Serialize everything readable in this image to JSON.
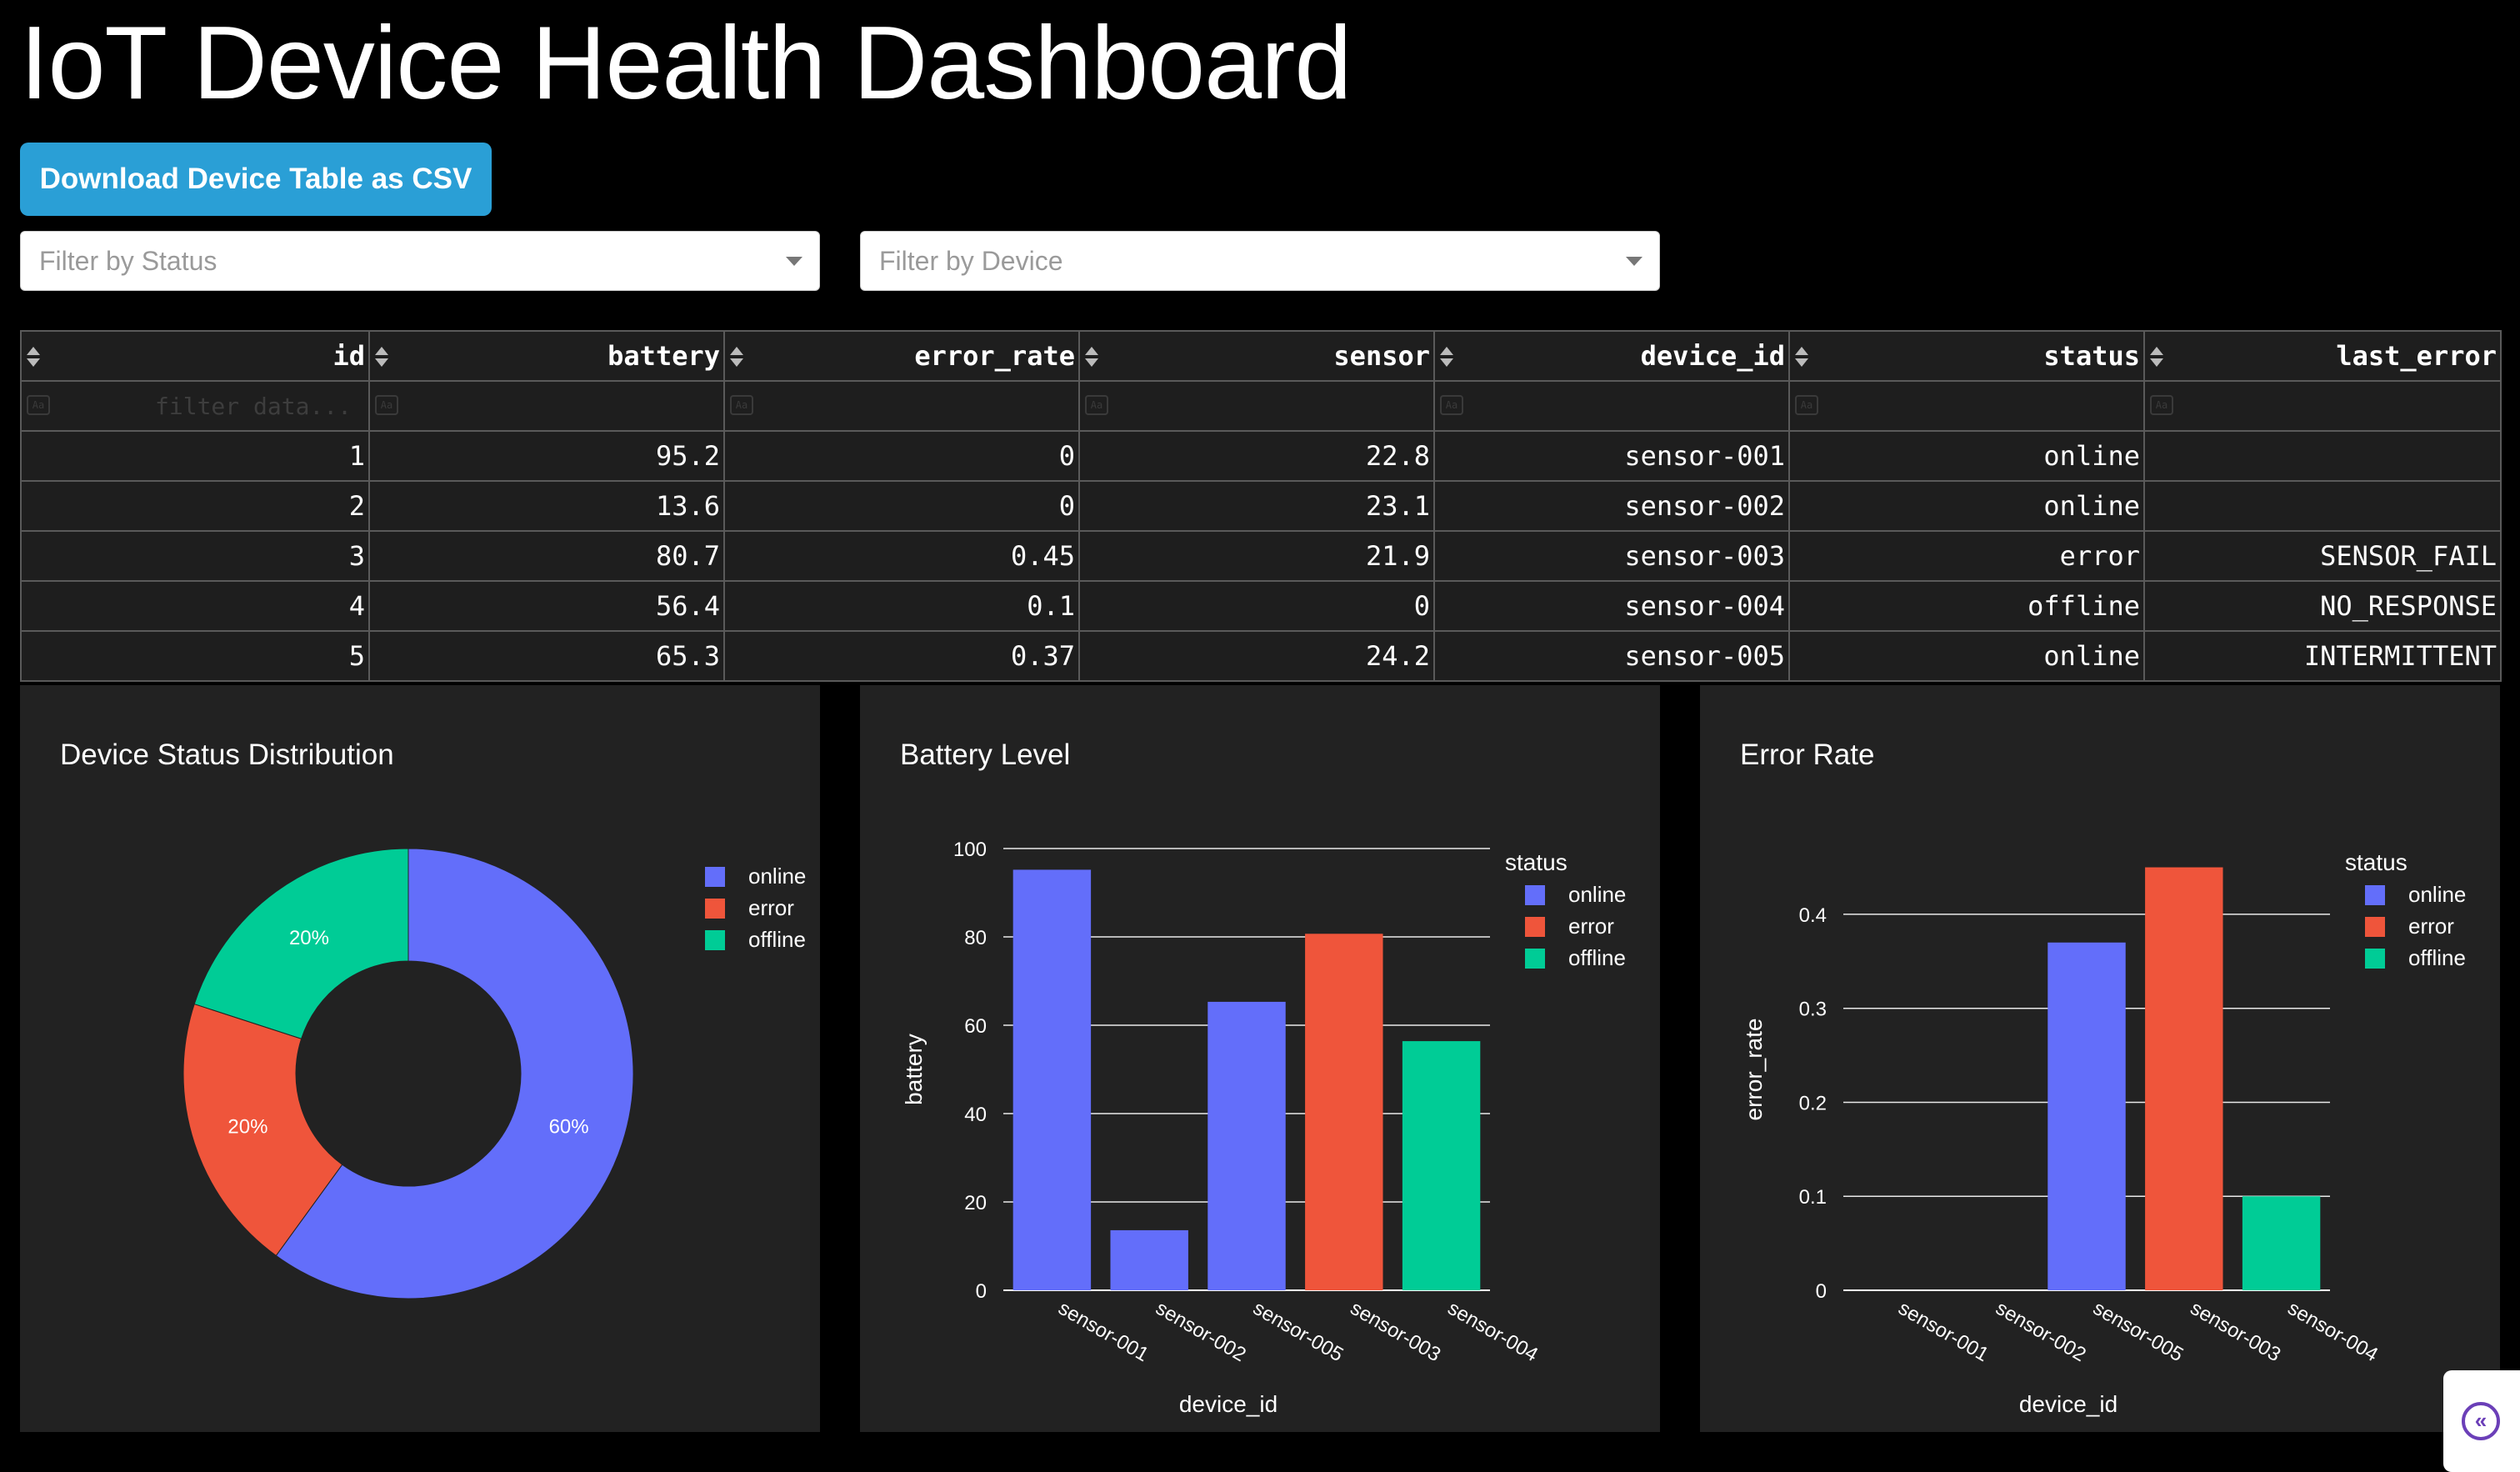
{
  "header": {
    "title": "IoT Device Health Dashboard"
  },
  "toolbar": {
    "download_label": "Download Device Table as CSV"
  },
  "filters": {
    "status_placeholder": "Filter by Status",
    "device_placeholder": "Filter by Device"
  },
  "table": {
    "columns": [
      "id",
      "battery",
      "error_rate",
      "sensor",
      "device_id",
      "status",
      "last_error"
    ],
    "filter_placeholder": "filter data...",
    "case_icon_label": "Aa",
    "rows": [
      [
        "1",
        "95.2",
        "0",
        "22.8",
        "sensor-001",
        "online",
        ""
      ],
      [
        "2",
        "13.6",
        "0",
        "23.1",
        "sensor-002",
        "online",
        ""
      ],
      [
        "3",
        "80.7",
        "0.45",
        "21.9",
        "sensor-003",
        "error",
        "SENSOR_FAIL"
      ],
      [
        "4",
        "56.4",
        "0.1",
        "0",
        "sensor-004",
        "offline",
        "NO_RESPONSE"
      ],
      [
        "5",
        "65.3",
        "0.37",
        "24.2",
        "sensor-005",
        "online",
        "INTERMITTENT"
      ]
    ]
  },
  "colors": {
    "online": "#636efa",
    "error": "#ef553b",
    "offline": "#00cc96"
  },
  "chart_data": [
    {
      "type": "pie",
      "title": "Device Status Distribution",
      "hole": 0.5,
      "labels": [
        "online",
        "error",
        "offline"
      ],
      "values": [
        3,
        1,
        1
      ],
      "percent_labels": [
        "60%",
        "20%",
        "20%"
      ],
      "legend": "top-right"
    },
    {
      "type": "bar",
      "title": "Battery Level",
      "xlabel": "device_id",
      "ylabel": "battery",
      "ylim": [
        0,
        100
      ],
      "yticks": [
        "0",
        "20",
        "40",
        "60",
        "80",
        "100"
      ],
      "legend_title": "status",
      "categories": [
        "sensor-001",
        "sensor-002",
        "sensor-005",
        "sensor-003",
        "sensor-004"
      ],
      "series": [
        {
          "name": "online",
          "values": [
            95.2,
            13.6,
            65.3,
            null,
            null
          ]
        },
        {
          "name": "error",
          "values": [
            null,
            null,
            null,
            80.7,
            null
          ]
        },
        {
          "name": "offline",
          "values": [
            null,
            null,
            null,
            null,
            56.4
          ]
        }
      ]
    },
    {
      "type": "bar",
      "title": "Error Rate",
      "xlabel": "device_id",
      "ylabel": "error_rate",
      "ylim": [
        0,
        0.47
      ],
      "yticks": [
        "0",
        "0.1",
        "0.2",
        "0.3",
        "0.4"
      ],
      "legend_title": "status",
      "categories": [
        "sensor-001",
        "sensor-002",
        "sensor-005",
        "sensor-003",
        "sensor-004"
      ],
      "series": [
        {
          "name": "online",
          "values": [
            0,
            0,
            0.37,
            null,
            null
          ]
        },
        {
          "name": "error",
          "values": [
            null,
            null,
            null,
            0.45,
            null
          ]
        },
        {
          "name": "offline",
          "values": [
            null,
            null,
            null,
            null,
            0.1
          ]
        }
      ]
    }
  ],
  "side_toggle": {
    "label": "«"
  }
}
